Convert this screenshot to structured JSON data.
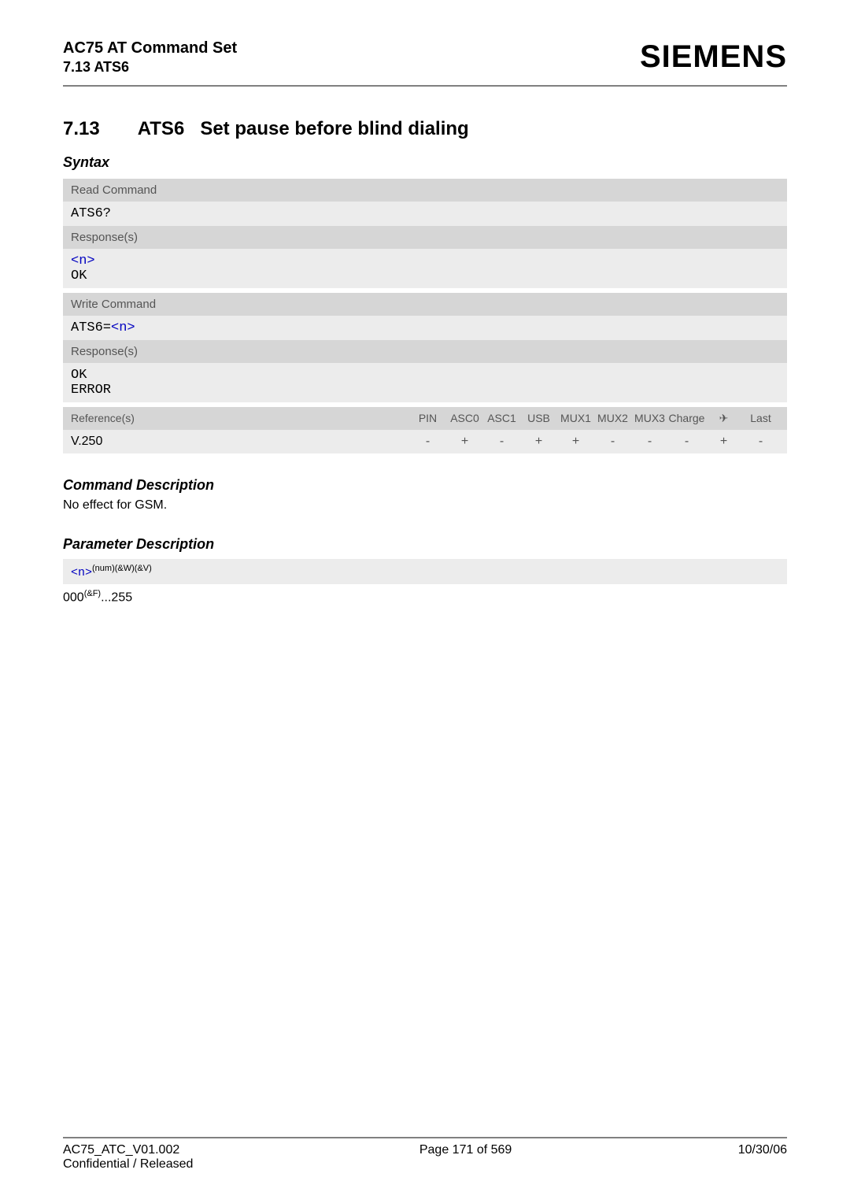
{
  "header": {
    "title_line1": "AC75 AT Command Set",
    "title_line2": "7.13 ATS6",
    "logo": "SIEMENS"
  },
  "section": {
    "number": "7.13",
    "title_cmd": "ATS6",
    "title_rest": "Set pause before blind dialing"
  },
  "syntax": {
    "label": "Syntax",
    "read_cmd_label": "Read Command",
    "read_cmd": "ATS6?",
    "responses_label": "Response(s)",
    "read_resp_n": "<n>",
    "read_resp_ok": "OK",
    "write_cmd_label": "Write Command",
    "write_cmd_prefix": "ATS6=",
    "write_cmd_n": "<n>",
    "write_resp_ok": "OK",
    "write_resp_err": "ERROR"
  },
  "reference": {
    "label": "Reference(s)",
    "columns": [
      "PIN",
      "ASC0",
      "ASC1",
      "USB",
      "MUX1",
      "MUX2",
      "MUX3",
      "Charge",
      "✈",
      "Last"
    ],
    "name": "V.250",
    "values": [
      "-",
      "+",
      "-",
      "+",
      "+",
      "-",
      "-",
      "-",
      "+",
      "-"
    ]
  },
  "cmd_desc": {
    "heading": "Command Description",
    "text": "No effect for GSM."
  },
  "param_desc": {
    "heading": "Parameter Description",
    "param_n": "<n>",
    "param_sup": "(num)(&W)(&V)",
    "range_prefix": "000",
    "range_sup": "(&F)",
    "range_suffix": "...255"
  },
  "footer": {
    "left_line1": "AC75_ATC_V01.002",
    "left_line2": "Confidential / Released",
    "center": "Page 171 of 569",
    "right": "10/30/06"
  }
}
